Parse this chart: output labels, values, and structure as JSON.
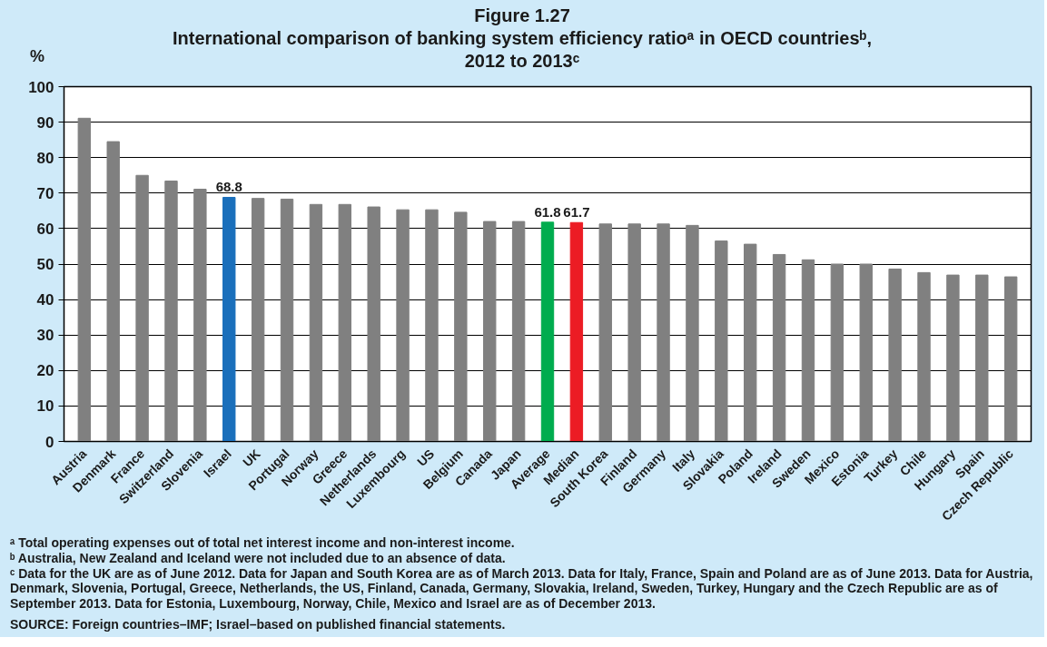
{
  "chart_data": {
    "type": "bar",
    "title": "Figure 1.27",
    "subtitle": "International comparison of banking system efficiency ratioᵃ in OECD countriesᵇ,\n2012 to 2013ᶜ",
    "ylabel": "%",
    "categories": [
      "Austria",
      "Denmark",
      "France",
      "Switzerland",
      "Slovenia",
      "Israel",
      "UK",
      "Portugal",
      "Norway",
      "Greece",
      "Netherlands",
      "Luxembourg",
      "US",
      "Belgium",
      "Canada",
      "Japan",
      "Average",
      "Median",
      "South Korea",
      "Finland",
      "Germany",
      "Italy",
      "Slovakia",
      "Poland",
      "Ireland",
      "Sweden",
      "Mexico",
      "Estonia",
      "Turkey",
      "Chile",
      "Hungary",
      "Spain",
      "Czech Republic"
    ],
    "values": [
      91.1,
      84.5,
      75.0,
      73.4,
      71.1,
      68.8,
      68.5,
      68.3,
      66.8,
      66.8,
      66.1,
      65.3,
      65.3,
      64.6,
      62.0,
      62.0,
      61.8,
      61.7,
      61.3,
      61.3,
      61.3,
      60.9,
      56.5,
      55.6,
      52.7,
      51.2,
      50.0,
      50.0,
      48.6,
      47.6,
      46.9,
      46.9,
      46.4
    ],
    "colors": [
      "#808080",
      "#808080",
      "#808080",
      "#808080",
      "#808080",
      "#1a6fbb",
      "#808080",
      "#808080",
      "#808080",
      "#808080",
      "#808080",
      "#808080",
      "#808080",
      "#808080",
      "#808080",
      "#808080",
      "#00ac4e",
      "#ec1c24",
      "#808080",
      "#808080",
      "#808080",
      "#808080",
      "#808080",
      "#808080",
      "#808080",
      "#808080",
      "#808080",
      "#808080",
      "#808080",
      "#808080",
      "#808080",
      "#808080",
      "#808080"
    ],
    "value_labels": [
      null,
      null,
      null,
      null,
      null,
      "68.8",
      null,
      null,
      null,
      null,
      null,
      null,
      null,
      null,
      null,
      null,
      "61.8",
      "61.7",
      null,
      null,
      null,
      null,
      null,
      null,
      null,
      null,
      null,
      null,
      null,
      null,
      null,
      null,
      null
    ],
    "ylim": [
      0,
      100
    ],
    "yticks": [
      0,
      10,
      20,
      30,
      40,
      50,
      60,
      70,
      80,
      90,
      100
    ],
    "grid": "y",
    "annotations": [
      "ᵃ Total operating expenses out of total net interest income and non-interest income.",
      "ᵇ Australia, New Zealand and Iceland were not included due to an absence of data.",
      "ᶜ Data for the UK are as of June 2012.  Data for Japan and South Korea are as of March 2013.  Data for Italy, France, Spain and Poland are as of June 2013.  Data for Austria, Denmark, Slovenia, Portugal, Greece, Netherlands, the US, Finland, Canada, Germany, Slovakia, Ireland, Sweden, Turkey, Hungary and the Czech Republic are as of September 2013.  Data for Estonia, Luxembourg, Norway, Chile, Mexico and Israel are as of December 2013.",
      "SOURCE: Foreign countries–IMF; Israel–based on published financial statements."
    ]
  }
}
